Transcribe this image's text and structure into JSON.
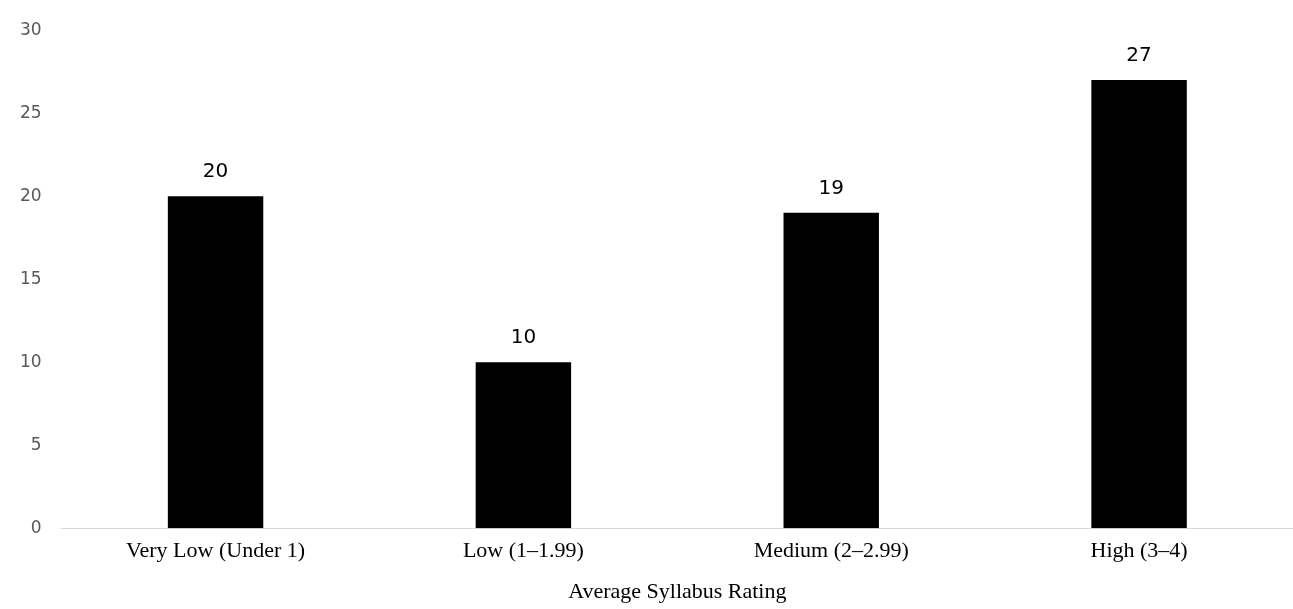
{
  "chart_data": {
    "type": "bar",
    "xlabel": "Average Syllabus Rating",
    "categories": [
      "Very Low (Under 1)",
      "Low (1–1.99)",
      "Medium (2–2.99)",
      "High (3–4)"
    ],
    "values": [
      20,
      10,
      19,
      27
    ],
    "color": "#000000",
    "ylim": [
      0,
      30
    ],
    "yticks": [
      0,
      5,
      10,
      15,
      20,
      25,
      30
    ],
    "grid": false,
    "legend": false,
    "data_labels": true
  }
}
